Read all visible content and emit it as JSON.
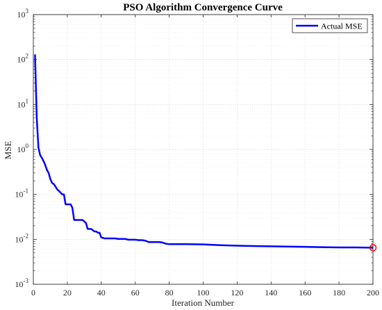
{
  "chart_data": {
    "type": "line",
    "title": "PSO Algorithm Convergence Curve",
    "xlabel": "Iteration Number",
    "ylabel": "MSE",
    "xlim": [
      0,
      200
    ],
    "ylim": [
      0.001,
      1000
    ],
    "yscale": "log",
    "grid": true,
    "legend_position": "top-right",
    "x_ticks": [
      0,
      20,
      40,
      60,
      80,
      100,
      120,
      140,
      160,
      180,
      200
    ],
    "x_tick_labels": [
      "0",
      "20",
      "40",
      "60",
      "80",
      "100",
      "120",
      "140",
      "160",
      "180",
      "200"
    ],
    "y_ticks": [
      0.001,
      0.01,
      0.1,
      1,
      10,
      100,
      1000
    ],
    "y_tick_labels": [
      {
        "base": "10",
        "exp": "-3"
      },
      {
        "base": "10",
        "exp": "-2"
      },
      {
        "base": "10",
        "exp": "-1"
      },
      {
        "base": "10",
        "exp": "0"
      },
      {
        "base": "10",
        "exp": "1"
      },
      {
        "base": "10",
        "exp": "2"
      },
      {
        "base": "10",
        "exp": "3"
      }
    ],
    "series": [
      {
        "name": "Actual MSE",
        "color": "#0000ff",
        "x": [
          1,
          2,
          3,
          4,
          5,
          6,
          7,
          8,
          9,
          10,
          11,
          12,
          13,
          14,
          15,
          16,
          17,
          18,
          19,
          20,
          21,
          22,
          23,
          24,
          25,
          26,
          27,
          28,
          29,
          30,
          31,
          32,
          33,
          34,
          35,
          36,
          37,
          38,
          39,
          40,
          42,
          44,
          46,
          48,
          50,
          52,
          54,
          56,
          58,
          60,
          62,
          64,
          66,
          68,
          70,
          72,
          74,
          76,
          78,
          80,
          90,
          100,
          110,
          120,
          130,
          140,
          150,
          160,
          170,
          180,
          190,
          200
        ],
        "y": [
          130,
          5,
          1.1,
          0.75,
          0.65,
          0.55,
          0.45,
          0.35,
          0.3,
          0.22,
          0.18,
          0.17,
          0.15,
          0.13,
          0.12,
          0.11,
          0.1,
          0.1,
          0.06,
          0.06,
          0.06,
          0.06,
          0.05,
          0.027,
          0.027,
          0.027,
          0.027,
          0.027,
          0.027,
          0.025,
          0.023,
          0.017,
          0.017,
          0.017,
          0.016,
          0.015,
          0.015,
          0.014,
          0.014,
          0.011,
          0.0105,
          0.0105,
          0.0105,
          0.0105,
          0.0102,
          0.0102,
          0.0102,
          0.0098,
          0.0098,
          0.0098,
          0.0096,
          0.0096,
          0.0093,
          0.0087,
          0.0087,
          0.0087,
          0.0087,
          0.0085,
          0.008,
          0.0078,
          0.0078,
          0.0077,
          0.0074,
          0.0072,
          0.0071,
          0.007,
          0.0069,
          0.0068,
          0.0067,
          0.0066,
          0.0066,
          0.0065
        ]
      }
    ],
    "end_marker": {
      "x": 200,
      "y": 0.0065,
      "color": "#ff0000"
    }
  }
}
